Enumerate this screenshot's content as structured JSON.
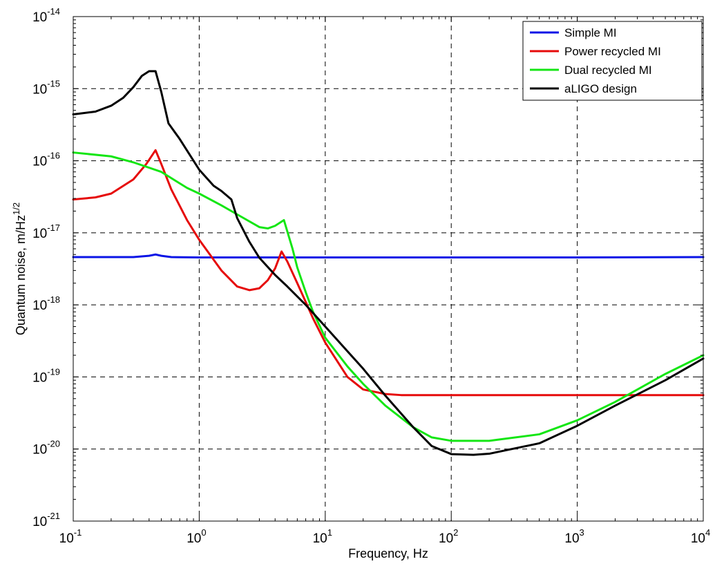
{
  "chart_data": {
    "type": "line",
    "xlabel": "Frequency, Hz",
    "ylabel": {
      "base": "Quantum noise, m/Hz",
      "superscript": "1/2"
    },
    "xscale": "log",
    "yscale": "log",
    "xlim": [
      0.1,
      10000
    ],
    "ylim": [
      1e-21,
      1e-14
    ],
    "x_ticks": [
      {
        "base": "10",
        "exp": "-1"
      },
      {
        "base": "10",
        "exp": "0"
      },
      {
        "base": "10",
        "exp": "1"
      },
      {
        "base": "10",
        "exp": "2"
      },
      {
        "base": "10",
        "exp": "3"
      },
      {
        "base": "10",
        "exp": "4"
      }
    ],
    "y_ticks": [
      {
        "base": "10",
        "exp": "-21"
      },
      {
        "base": "10",
        "exp": "-20"
      },
      {
        "base": "10",
        "exp": "-19"
      },
      {
        "base": "10",
        "exp": "-18"
      },
      {
        "base": "10",
        "exp": "-17"
      },
      {
        "base": "10",
        "exp": "-16"
      },
      {
        "base": "10",
        "exp": "-15"
      },
      {
        "base": "10",
        "exp": "-14"
      }
    ],
    "grid": true,
    "legend_position": "top-right",
    "series": [
      {
        "name": "Simple MI",
        "color": "#0a14e6",
        "points": [
          [
            0.1,
            4.6e-18
          ],
          [
            0.3,
            4.6e-18
          ],
          [
            0.4,
            4.8e-18
          ],
          [
            0.45,
            5e-18
          ],
          [
            0.5,
            4.8e-18
          ],
          [
            0.6,
            4.6e-18
          ],
          [
            1,
            4.55e-18
          ],
          [
            10,
            4.55e-18
          ],
          [
            100,
            4.55e-18
          ],
          [
            1000,
            4.55e-18
          ],
          [
            10000,
            4.6e-18
          ]
        ]
      },
      {
        "name": "Power recycled MI",
        "color": "#e60a0a",
        "points": [
          [
            0.1,
            2.9e-17
          ],
          [
            0.15,
            3.1e-17
          ],
          [
            0.2,
            3.5e-17
          ],
          [
            0.3,
            5.5e-17
          ],
          [
            0.38,
            9e-17
          ],
          [
            0.45,
            1.4e-16
          ],
          [
            0.5,
            9e-17
          ],
          [
            0.6,
            4e-17
          ],
          [
            0.8,
            1.5e-17
          ],
          [
            1,
            8e-18
          ],
          [
            1.5,
            3e-18
          ],
          [
            2,
            1.8e-18
          ],
          [
            2.5,
            1.6e-18
          ],
          [
            3,
            1.7e-18
          ],
          [
            3.5,
            2.2e-18
          ],
          [
            4,
            3.2e-18
          ],
          [
            4.5,
            5.5e-18
          ],
          [
            5,
            4e-18
          ],
          [
            6,
            2e-18
          ],
          [
            7,
            1.1e-18
          ],
          [
            8,
            6.5e-19
          ],
          [
            10,
            3e-19
          ],
          [
            15,
            1e-19
          ],
          [
            20,
            6.7e-20
          ],
          [
            30,
            5.8e-20
          ],
          [
            40,
            5.6e-20
          ],
          [
            100,
            5.6e-20
          ],
          [
            1000,
            5.6e-20
          ],
          [
            10000,
            5.6e-20
          ]
        ]
      },
      {
        "name": "Dual recycled MI",
        "color": "#14e614",
        "points": [
          [
            0.1,
            1.3e-16
          ],
          [
            0.2,
            1.15e-16
          ],
          [
            0.3,
            9.5e-17
          ],
          [
            0.5,
            7e-17
          ],
          [
            0.8,
            4.2e-17
          ],
          [
            1,
            3.5e-17
          ],
          [
            1.5,
            2.4e-17
          ],
          [
            2,
            1.8e-17
          ],
          [
            3,
            1.2e-17
          ],
          [
            3.5,
            1.15e-17
          ],
          [
            4,
            1.25e-17
          ],
          [
            4.7,
            1.5e-17
          ],
          [
            5.5,
            6e-18
          ],
          [
            6,
            3.3e-18
          ],
          [
            7,
            1.5e-18
          ],
          [
            8,
            8e-19
          ],
          [
            10,
            3.5e-19
          ],
          [
            15,
            1.4e-19
          ],
          [
            20,
            8e-20
          ],
          [
            30,
            4e-20
          ],
          [
            50,
            2e-20
          ],
          [
            70,
            1.45e-20
          ],
          [
            100,
            1.3e-20
          ],
          [
            200,
            1.3e-20
          ],
          [
            500,
            1.6e-20
          ],
          [
            1000,
            2.5e-20
          ],
          [
            2000,
            4.5e-20
          ],
          [
            5000,
            1.1e-19
          ],
          [
            10000,
            2e-19
          ]
        ]
      },
      {
        "name": "aLIGO design",
        "color": "#000000",
        "points": [
          [
            0.1,
            4.4e-16
          ],
          [
            0.15,
            4.8e-16
          ],
          [
            0.2,
            5.8e-16
          ],
          [
            0.25,
            7.5e-16
          ],
          [
            0.3,
            1.05e-15
          ],
          [
            0.35,
            1.5e-15
          ],
          [
            0.4,
            1.75e-15
          ],
          [
            0.45,
            1.75e-15
          ],
          [
            0.5,
            9e-16
          ],
          [
            0.57,
            3.3e-16
          ],
          [
            0.7,
            2e-16
          ],
          [
            1,
            7.5e-17
          ],
          [
            1.3,
            4.5e-17
          ],
          [
            1.5,
            3.8e-17
          ],
          [
            1.8,
            2.9e-17
          ],
          [
            2,
            1.6e-17
          ],
          [
            2.5,
            7.5e-18
          ],
          [
            3,
            4.5e-18
          ],
          [
            4,
            2.6e-18
          ],
          [
            5,
            1.8e-18
          ],
          [
            7,
            1e-18
          ],
          [
            10,
            5e-19
          ],
          [
            20,
            1.3e-19
          ],
          [
            30,
            5.5e-20
          ],
          [
            50,
            2e-20
          ],
          [
            70,
            1.1e-20
          ],
          [
            100,
            8.5e-21
          ],
          [
            150,
            8.3e-21
          ],
          [
            200,
            8.6e-21
          ],
          [
            500,
            1.2e-20
          ],
          [
            1000,
            2.1e-20
          ],
          [
            2000,
            4e-20
          ],
          [
            5000,
            9e-20
          ],
          [
            10000,
            1.8e-19
          ]
        ]
      }
    ]
  }
}
